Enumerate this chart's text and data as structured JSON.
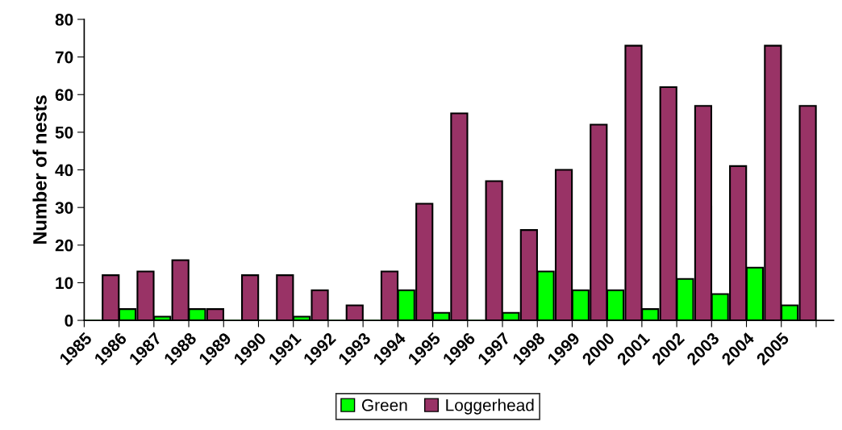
{
  "chart_data": {
    "type": "bar",
    "ylabel": "Number of nests",
    "categories": [
      "1985",
      "1986",
      "1987",
      "1988",
      "1989",
      "1990",
      "1991",
      "1992",
      "1993",
      "1994",
      "1995",
      "1996",
      "1997",
      "1998",
      "1999",
      "2000",
      "2001",
      "2002",
      "2003",
      "2004",
      "2005",
      null
    ],
    "series": [
      {
        "name": "Green",
        "color": "#00ff00",
        "values": [
          0,
          3,
          1,
          3,
          0,
          0,
          1,
          0,
          0,
          8,
          2,
          0,
          2,
          13,
          8,
          8,
          3,
          11,
          7,
          14,
          4,
          null
        ]
      },
      {
        "name": "Loggerhead",
        "color": "#993366",
        "values": [
          null,
          12,
          13,
          16,
          3,
          12,
          12,
          8,
          4,
          13,
          31,
          55,
          37,
          24,
          40,
          52,
          73,
          62,
          57,
          41,
          73,
          57
        ]
      }
    ],
    "ylim": [
      0,
      80
    ],
    "yticks": [
      0,
      10,
      20,
      30,
      40,
      50,
      60,
      70,
      80
    ],
    "grid": false,
    "legend": "bottom"
  }
}
